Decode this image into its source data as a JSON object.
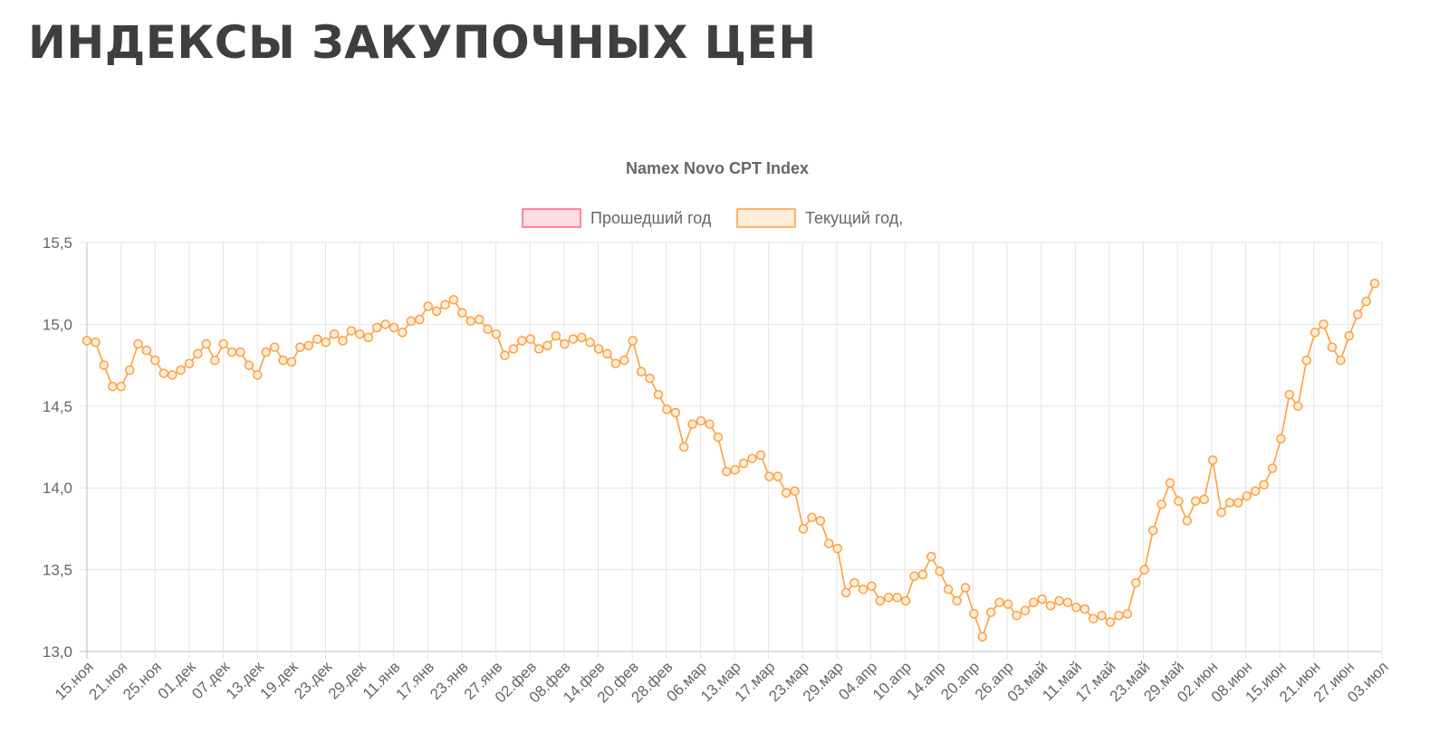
{
  "page": {
    "title": "ИНДЕКСЫ ЗАКУПОЧНЫХ ЦЕН"
  },
  "chart_data": {
    "type": "line",
    "title": "Namex Novo CPT Index",
    "grid": true,
    "legend_position": "top-center",
    "ylim": [
      13.0,
      15.5
    ],
    "y_ticks": [
      "15,5",
      "15,0",
      "14,5",
      "14,0",
      "13,5",
      "13,0"
    ],
    "y_tick_values": [
      15.5,
      15.0,
      14.5,
      14.0,
      13.5,
      13.0
    ],
    "x_tick_labels": [
      "15.ноя",
      "21.ноя",
      "25.ноя",
      "01.дек",
      "07.дек",
      "13.дек",
      "19.дек",
      "23.дек",
      "29.дек",
      "11.янв",
      "17.янв",
      "23.янв",
      "27.янв",
      "02.фев",
      "08.фев",
      "14.фев",
      "20.фев",
      "28.фев",
      "06.мар",
      "13.мар",
      "17.мар",
      "23.мар",
      "29.мар",
      "04.апр",
      "10.апр",
      "14.апр",
      "20.апр",
      "26.апр",
      "03.май",
      "11.май",
      "17.май",
      "23.май",
      "29.май",
      "02.июн",
      "08.июн",
      "15.июн",
      "21.июн",
      "27.июн",
      "03.июл"
    ],
    "series": [
      {
        "name": "Прошедший год",
        "color": "#ff6384",
        "fill": "#ffdde4",
        "values": []
      },
      {
        "name": "Текущий год,",
        "color": "#ff9f40",
        "fill": "#ffecd9",
        "values": [
          14.9,
          14.89,
          14.75,
          14.62,
          14.62,
          14.72,
          14.88,
          14.84,
          14.78,
          14.7,
          14.69,
          14.72,
          14.76,
          14.82,
          14.88,
          14.78,
          14.88,
          14.83,
          14.83,
          14.75,
          14.69,
          14.83,
          14.86,
          14.78,
          14.77,
          14.86,
          14.87,
          14.91,
          14.89,
          14.94,
          14.9,
          14.96,
          14.94,
          14.92,
          14.98,
          15.0,
          14.98,
          14.95,
          15.02,
          15.03,
          15.11,
          15.08,
          15.12,
          15.15,
          15.07,
          15.02,
          15.03,
          14.97,
          14.94,
          14.81,
          14.85,
          14.9,
          14.91,
          14.85,
          14.87,
          14.93,
          14.88,
          14.91,
          14.92,
          14.89,
          14.85,
          14.82,
          14.76,
          14.78,
          14.9,
          14.71,
          14.67,
          14.57,
          14.48,
          14.46,
          14.25,
          14.39,
          14.41,
          14.39,
          14.31,
          14.1,
          14.11,
          14.15,
          14.18,
          14.2,
          14.07,
          14.07,
          13.97,
          13.98,
          13.75,
          13.82,
          13.8,
          13.66,
          13.63,
          13.36,
          13.42,
          13.38,
          13.4,
          13.31,
          13.33,
          13.33,
          13.31,
          13.46,
          13.47,
          13.58,
          13.49,
          13.38,
          13.31,
          13.39,
          13.23,
          13.09,
          13.24,
          13.3,
          13.29,
          13.22,
          13.25,
          13.3,
          13.32,
          13.28,
          13.31,
          13.3,
          13.27,
          13.26,
          13.2,
          13.22,
          13.18,
          13.22,
          13.23,
          13.42,
          13.5,
          13.74,
          13.9,
          14.03,
          13.92,
          13.8,
          13.92,
          13.93,
          14.17,
          13.85,
          13.91,
          13.91,
          13.95,
          13.98,
          14.02,
          14.12,
          14.3,
          14.57,
          14.5,
          14.78,
          14.95,
          15.0,
          14.86,
          14.78,
          14.93,
          15.06,
          15.14,
          15.25
        ]
      }
    ]
  }
}
